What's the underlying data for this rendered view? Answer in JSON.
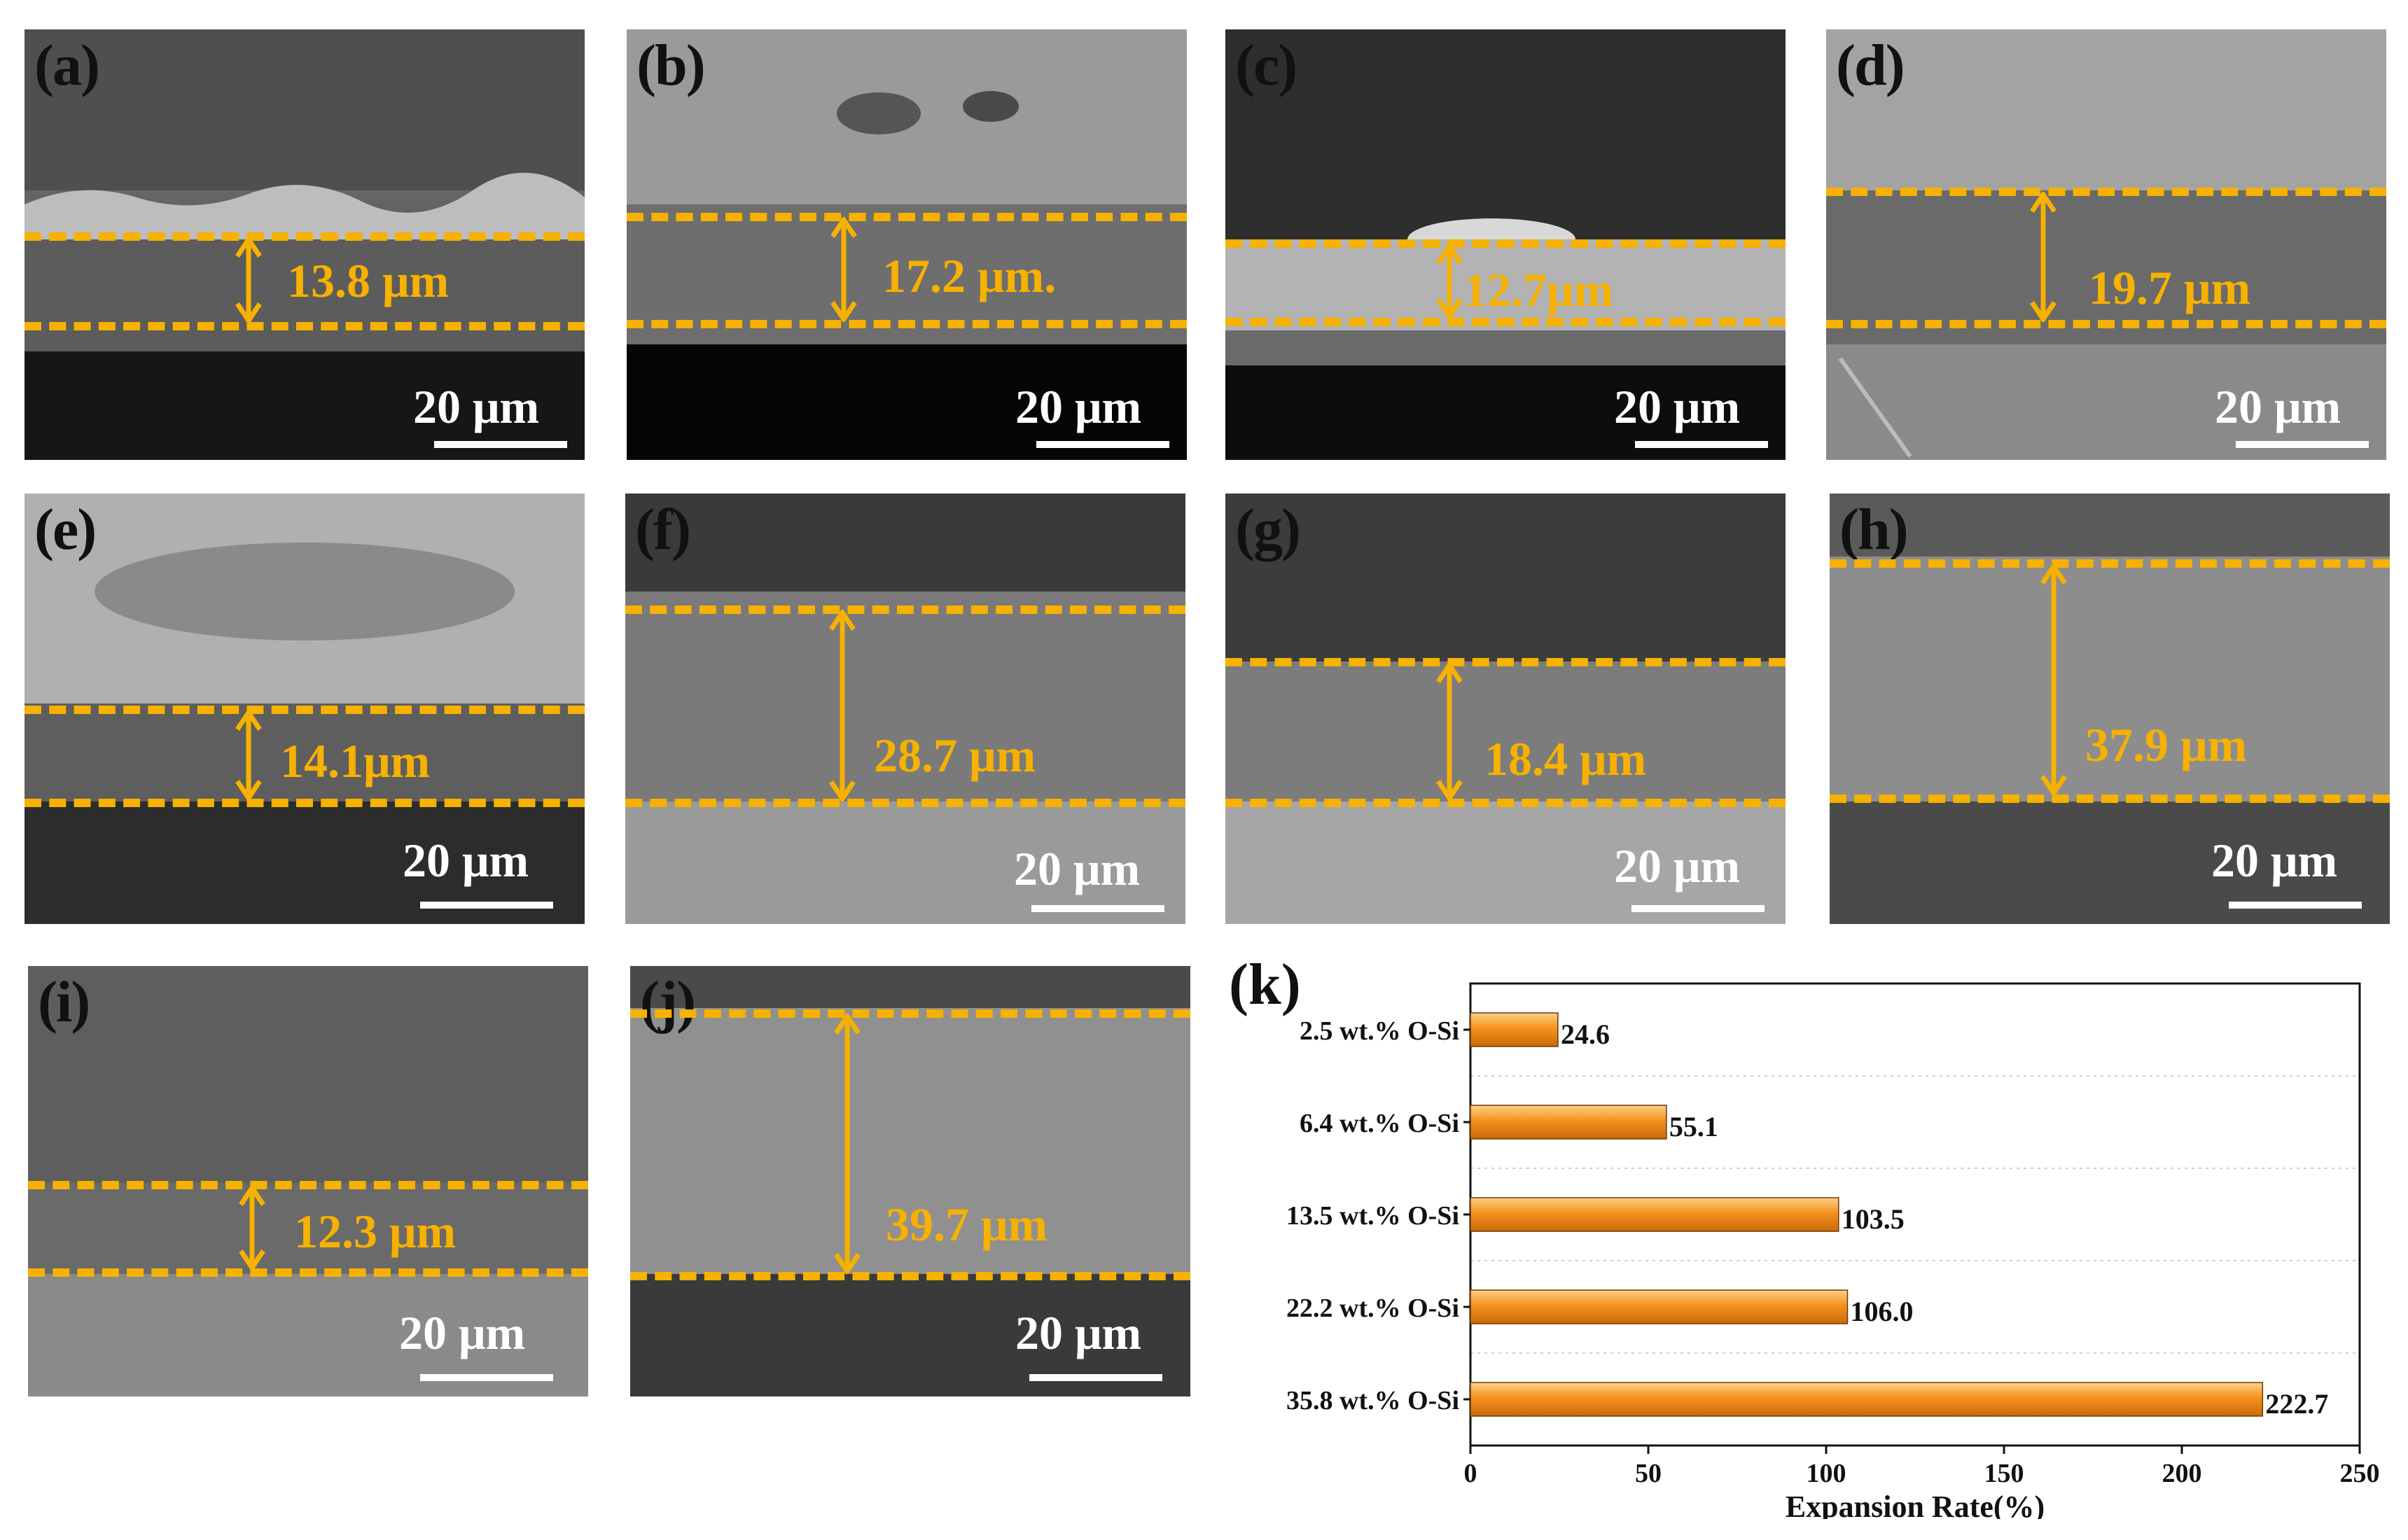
{
  "panels": [
    {
      "label": "(a)",
      "measurement": "13.8 μm",
      "scale": "20 μm"
    },
    {
      "label": "(b)",
      "measurement": "17.2 μm.",
      "scale": "20 μm"
    },
    {
      "label": "(c)",
      "measurement": "12.7μm",
      "scale": "20 μm"
    },
    {
      "label": "(d)",
      "measurement": "19.7 μm",
      "scale": "20 μm"
    },
    {
      "label": "(e)",
      "measurement": "14.1μm",
      "scale": "20 μm"
    },
    {
      "label": "(f)",
      "measurement": "28.7 μm",
      "scale": "20 μm"
    },
    {
      "label": "(g)",
      "measurement": "18.4 μm",
      "scale": "20 μm"
    },
    {
      "label": "(h)",
      "measurement": "37.9 μm",
      "scale": "20 μm"
    },
    {
      "label": "(i)",
      "measurement": "12.3 μm",
      "scale": "20 μm"
    },
    {
      "label": "(j)",
      "measurement": "39.7 μm",
      "scale": "20 μm"
    }
  ],
  "chart_data": {
    "type": "bar",
    "orientation": "horizontal",
    "label": "(k)",
    "categories": [
      "2.5 wt.% O-Si",
      "6.4 wt.% O-Si",
      "13.5 wt.% O-Si",
      "22.2 wt.% O-Si",
      "35.8 wt.% O-Si"
    ],
    "values": [
      24.6,
      55.1,
      103.5,
      106.0,
      222.7
    ],
    "value_labels": [
      "24.6",
      "55.1",
      "103.5",
      "106.0",
      "222.7"
    ],
    "xlabel": "Expansion Rate(%)",
    "xlim": [
      0,
      250
    ],
    "xticks": [
      0,
      50,
      100,
      150,
      200,
      250
    ],
    "bar_color": "#f5921e",
    "grid": "horizontal-dotted"
  },
  "colors": {
    "measure": "#f7b100",
    "bar": "#f5921e"
  }
}
